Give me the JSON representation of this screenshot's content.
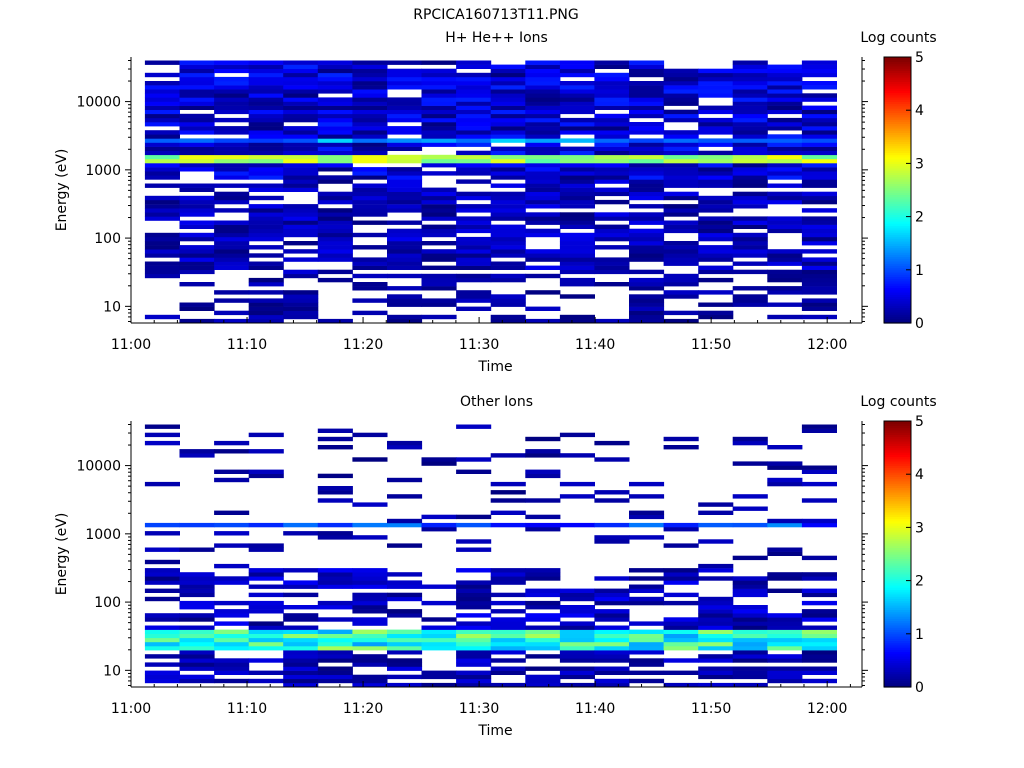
{
  "figure_title": "RPCICA160713T11.PNG",
  "chart_data": [
    {
      "type": "heatmap",
      "title": "H+ He++ Ions",
      "xlabel": "Time",
      "ylabel": "Energy (eV)",
      "xtick_labels": [
        "11:00",
        "11:10",
        "11:20",
        "11:30",
        "11:40",
        "11:50",
        "12:00"
      ],
      "xlim_minutes": [
        0,
        63
      ],
      "ytick_labels": [
        "10",
        "100",
        "1000",
        "10000"
      ],
      "ylim": [
        5.7,
        45000
      ],
      "y_scale": "log",
      "colorbar": {
        "label": "Log counts",
        "range": [
          0,
          5
        ],
        "tick_labels": [
          "0",
          "1",
          "2",
          "3",
          "4",
          "5"
        ]
      },
      "features": [
        {
          "energy_ev": 1400,
          "log_counts": 2.6,
          "note": "strong continuous band"
        },
        {
          "energy_ev": 2800,
          "log_counts": 1.4
        },
        {
          "energy_ev": [
            700,
            40000
          ],
          "log_counts": 0.4
        },
        {
          "energy_ev": [
            6,
            700
          ],
          "log_counts": 0.25
        }
      ]
    },
    {
      "type": "heatmap",
      "title": "Other Ions",
      "xlabel": "Time",
      "ylabel": "Energy (eV)",
      "xtick_labels": [
        "11:00",
        "11:10",
        "11:20",
        "11:30",
        "11:40",
        "11:50",
        "12:00"
      ],
      "xlim_minutes": [
        0,
        63
      ],
      "ytick_labels": [
        "10",
        "100",
        "1000",
        "10000"
      ],
      "ylim": [
        5.7,
        45000
      ],
      "y_scale": "log",
      "colorbar": {
        "label": "Log counts",
        "range": [
          0,
          5
        ],
        "tick_labels": [
          "0",
          "1",
          "2",
          "3",
          "4",
          "5"
        ]
      },
      "features": [
        {
          "energy_ev": 27,
          "log_counts": 2.3,
          "note": "strong continuous band"
        },
        {
          "energy_ev": 1300,
          "log_counts": 1.0
        },
        {
          "energy_ev": [
            6,
            20
          ],
          "log_counts": 0.3
        },
        {
          "energy_ev": [
            35,
            300
          ],
          "log_counts": 0.3
        },
        {
          "energy_ev": [
            300,
            40000
          ],
          "log_counts": 0.1
        }
      ]
    }
  ]
}
